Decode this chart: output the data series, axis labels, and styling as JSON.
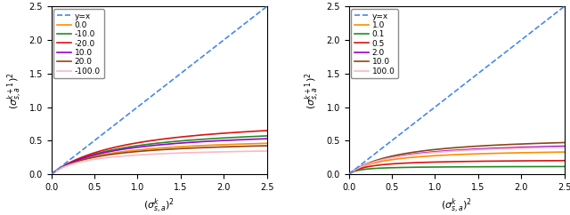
{
  "xlim": [
    0.0,
    2.5
  ],
  "ylim": [
    0.0,
    2.5
  ],
  "subplot1": {
    "xlabel": "$(\\sigma_{s,a}^{k})^2$",
    "ylabel": "$(\\sigma_{s,a}^{k+1})^2$",
    "curves": [
      {
        "label": "0.0",
        "C": 0.564,
        "color": "#ff8c00"
      },
      {
        "label": "-10.0",
        "C": 0.739,
        "color": "#228B22"
      },
      {
        "label": "-20.0",
        "C": 0.878,
        "color": "#dd1111"
      },
      {
        "label": "10.0",
        "C": 0.67,
        "color": "#9900cc"
      },
      {
        "label": "20.0",
        "C": 0.51,
        "color": "#8B4513"
      },
      {
        "label": "-100.0",
        "C": 0.4,
        "color": "#FFB6C1"
      }
    ]
  },
  "subplot2": {
    "xlabel": "$(\\sigma_{s,a}^{k})^2$",
    "ylabel": "$(\\sigma_{s,a}^{k+1})^2$",
    "curves": [
      {
        "label": "1.0",
        "C": 0.38,
        "color": "#ff8c00"
      },
      {
        "label": "0.1",
        "C": 0.119,
        "color": "#228B22"
      },
      {
        "label": "0.5",
        "C": 0.22,
        "color": "#dd1111"
      },
      {
        "label": "2.0",
        "C": 0.5,
        "color": "#9900cc"
      },
      {
        "label": "10.0",
        "C": 0.58,
        "color": "#8B4513"
      },
      {
        "label": "100.0",
        "C": 0.48,
        "color": "#FFB6C1"
      }
    ]
  },
  "n_points": 500,
  "legend_fontsize": 6.5,
  "tick_labelsize": 7,
  "label_fontsize": 8,
  "yx_label": "y=x",
  "dashed_color": "#4488ee",
  "dashed_lw": 1.2,
  "curve_lw": 1.2
}
